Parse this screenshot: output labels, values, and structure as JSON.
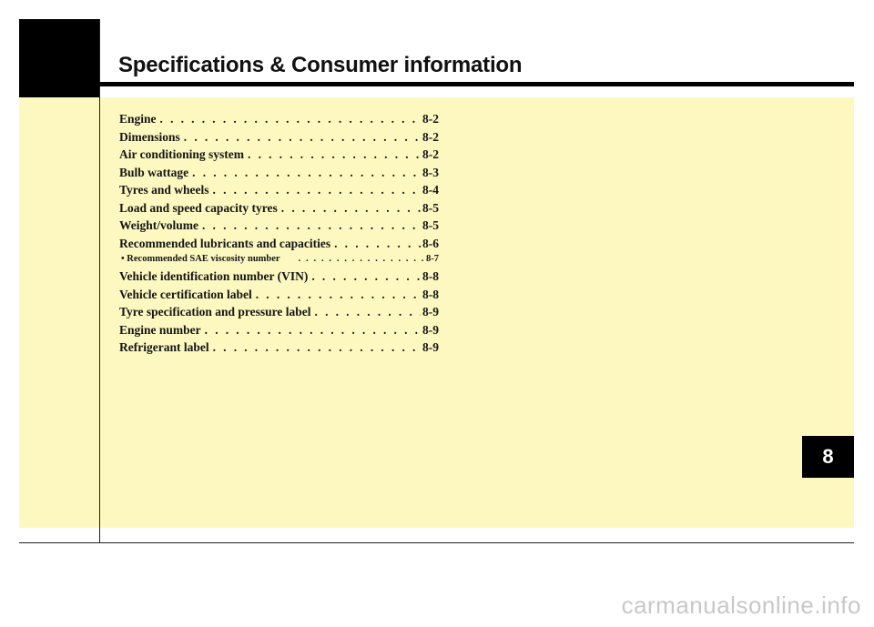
{
  "header": {
    "title": "Specifications & Consumer information"
  },
  "chapter_tab": "8",
  "toc": [
    {
      "label": "Engine",
      "page": "8-2",
      "sub": false
    },
    {
      "label": "Dimensions",
      "page": "8-2",
      "sub": false
    },
    {
      "label": "Air conditioning system",
      "page": "8-2",
      "sub": false
    },
    {
      "label": "Bulb wattage",
      "page": "8-3",
      "sub": false
    },
    {
      "label": "Tyres and wheels",
      "page": "8-4",
      "sub": false
    },
    {
      "label": "Load and speed capacity tyres",
      "page": "8-5",
      "sub": false
    },
    {
      "label": "Weight/volume",
      "page": "8-5",
      "sub": false
    },
    {
      "label": "Recommended lubricants and capacities",
      "page": "8-6",
      "sub": false
    },
    {
      "label": "• Recommended SAE viscosity number",
      "page": "8-7",
      "sub": true
    },
    {
      "label": "Vehicle identification number (VIN)",
      "page": "8-8",
      "sub": false
    },
    {
      "label": "Vehicle certification label",
      "page": "8-8",
      "sub": false
    },
    {
      "label": "Tyre specification and pressure label",
      "page": "8-9",
      "sub": false
    },
    {
      "label": "Engine number",
      "page": "8-9",
      "sub": false
    },
    {
      "label": "Refrigerant label",
      "page": "8-9",
      "sub": false
    }
  ],
  "watermark": "carmanualsonline.info",
  "colors": {
    "panel": "#fdf8c0",
    "black": "#000000"
  }
}
